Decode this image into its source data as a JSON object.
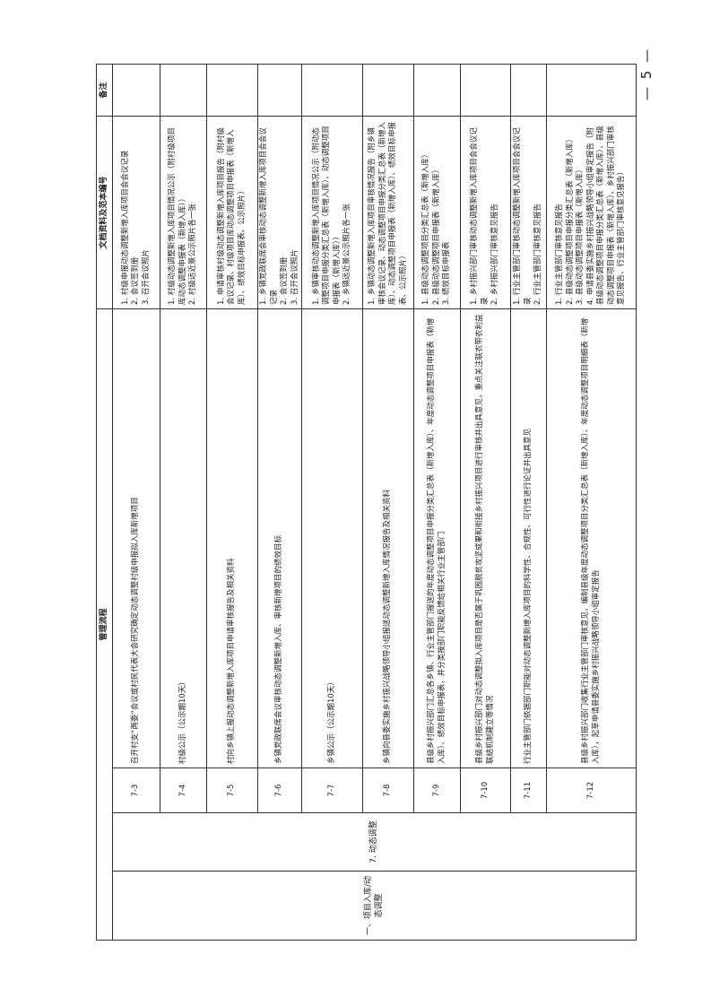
{
  "headers": {
    "process": "管理流程",
    "docs": "文档资料及范本编号",
    "remarks": "备注"
  },
  "category_level1": "一、项目入库/动态调整",
  "category_level2": "7. 动态调整",
  "rows": [
    {
      "code": "7-3",
      "process": "召开村支“两委”会议或村民代表大会研究确定动态调整村级申报拟入库新增项目",
      "docs": [
        "1. 村级申报动态调整新增入库项目会会议记录",
        "2. 会议签到册",
        "3. 召开会议照片"
      ],
      "remarks": ""
    },
    {
      "code": "7-4",
      "process": "村级公示（公示期10天）",
      "docs": [
        "1. 村级动态调整新增入库项目情况公示（附村级项目库动态调整申报表（新增入库））",
        "2. 村级远近景公示照片各一张"
      ],
      "remarks": ""
    },
    {
      "code": "7-5",
      "process": "村向乡镇上报动态调整新增入库项目申请审核报告及相关资料",
      "docs": [
        "1. 申请审核村级动态调整新增入库项目报告（附村级会议记录、村级项目库动态调整项目申报表（新增入库）、绩效目标申报表、公示照片）"
      ],
      "remarks": ""
    },
    {
      "code": "7-6",
      "process": "乡镇党政联席会议审核动态调整新增入库、审核新增项目的绩效目标",
      "docs": [
        "1. 乡镇党政联席会审核动态调整新增入库项目会会议记录",
        "2. 会议签到册",
        "3. 召开会议照片"
      ],
      "remarks": ""
    },
    {
      "code": "7-7",
      "process": "乡镇公示（公示期10天）",
      "docs": [
        "1. 乡镇审核动态调整新增入库项目情况公示（附动态调整项目申报分类汇总表（新增入库）、动态调整项目申报表（新增入库））",
        "2. 乡镇远近景公示照片各一张"
      ],
      "remarks": ""
    },
    {
      "code": "7-8",
      "process": "乡镇向县委实施乡村振兴战略领导小组报送动态调整新增入库情况报告及相关资料",
      "docs": [
        "1. 乡镇动态调整新增入库项目审核情况报告（附乡镇审核会议记录、动态调整项目申报分类汇总表（新增入库）、动态调整项目申报表（新增入库）、绩效目标申报表、公示照片）"
      ],
      "remarks": ""
    },
    {
      "code": "7-9",
      "process": "县级乡村振兴部门汇总各乡镇、行业主管部门报送的年度动态调整项目申报分类汇总表（新增入库）、年度动态调整项目申报表（新增入库）、绩效目标申报表，并分类按部门职能反馈给相关行业主管部门",
      "docs": [
        "1. 县级动态调整项目分类汇总表（新增入库）",
        "2. 县级动态调整项目申报表（新增入库）",
        "3. 绩效目标申报表"
      ],
      "remarks": ""
    },
    {
      "code": "7-10",
      "process": "县级乡村振兴部门对动态调整拟入库项目是否属于巩固脱贫攻坚成果和衔接乡村振兴项目进行审核并出具意见，重点关注联农带农利益联结机制建立等情况",
      "docs": [
        "1. 乡村振兴部门审核动态调整新增入库项目会会议记录",
        "2. 乡村振兴部门审核意见报告"
      ],
      "remarks": ""
    },
    {
      "code": "7-11",
      "process": "行业主管部门依据部门职能对动态调整新增入库项目的科学性、合规性、可行性进行论证并出具意见",
      "docs": [
        "1. 行业主管部门审核动态调整新增入库项目会会议记录",
        "2. 行业主管部门审核意见报告"
      ],
      "remarks": ""
    },
    {
      "code": "7-12",
      "process": "县级乡村振兴部门收集行业主管部门审核意见，编制县级年度动态调整项目分类汇总表（新增入库）、年度动态调整项目明细表（新增入库），起草申请县委实施乡村振兴战略领导小组审定报告",
      "docs": [
        "1. 行业主管部门审核意见报告",
        "2. 县级动态调整项目申报分类汇总表（新增入库）",
        "3. 县级动态调整项目申报表（新增入库）",
        "4. 申请县委实施乡村振兴战略领导小组审定报告（附县级动态调整项目申报分类汇总表（新增入库）、县级动态调整项目申报表（新增入库）、乡村振兴部门审核意见报告、行业主管部门审核意见报告）"
      ],
      "remarks": ""
    }
  ],
  "page_number": "— 5 —"
}
